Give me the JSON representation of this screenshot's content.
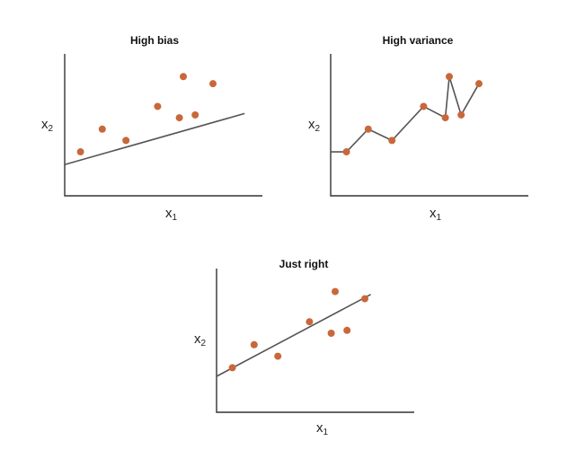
{
  "point_color": "#c8683a",
  "line_color": "#555555",
  "chart_data": [
    {
      "type": "scatter",
      "title": "High bias",
      "xlabel": "x",
      "xlabel_sub": "1",
      "ylabel": "x",
      "ylabel_sub": "2",
      "xlim": [
        0,
        10
      ],
      "ylim": [
        0,
        10
      ],
      "points": [
        {
          "x": 0.8,
          "y": 3.1
        },
        {
          "x": 1.9,
          "y": 4.7
        },
        {
          "x": 3.1,
          "y": 3.9
        },
        {
          "x": 4.7,
          "y": 6.3
        },
        {
          "x": 5.8,
          "y": 5.5
        },
        {
          "x": 6.0,
          "y": 8.4
        },
        {
          "x": 6.6,
          "y": 5.7
        },
        {
          "x": 7.5,
          "y": 7.9
        }
      ],
      "fit": {
        "kind": "linear",
        "x": [
          0,
          9.1
        ],
        "y": [
          2.2,
          5.8
        ]
      }
    },
    {
      "type": "line",
      "title": "High variance",
      "xlabel": "x",
      "xlabel_sub": "1",
      "ylabel": "x",
      "ylabel_sub": "2",
      "xlim": [
        0,
        10
      ],
      "ylim": [
        0,
        10
      ],
      "points": [
        {
          "x": 0.8,
          "y": 3.1
        },
        {
          "x": 1.9,
          "y": 4.7
        },
        {
          "x": 3.1,
          "y": 3.9
        },
        {
          "x": 4.7,
          "y": 6.3
        },
        {
          "x": 5.8,
          "y": 5.5
        },
        {
          "x": 6.0,
          "y": 8.4
        },
        {
          "x": 6.6,
          "y": 5.7
        },
        {
          "x": 7.5,
          "y": 7.9
        }
      ],
      "fit": {
        "kind": "interpolate",
        "start": {
          "x": 0,
          "y": 3.1
        }
      }
    },
    {
      "type": "scatter",
      "title": "Just right",
      "xlabel": "x",
      "xlabel_sub": "1",
      "ylabel": "x",
      "ylabel_sub": "2",
      "xlim": [
        0,
        10
      ],
      "ylim": [
        0,
        10
      ],
      "points": [
        {
          "x": 0.8,
          "y": 3.1
        },
        {
          "x": 1.9,
          "y": 4.7
        },
        {
          "x": 3.1,
          "y": 3.9
        },
        {
          "x": 4.7,
          "y": 6.3
        },
        {
          "x": 5.8,
          "y": 5.5
        },
        {
          "x": 6.0,
          "y": 8.4
        },
        {
          "x": 6.6,
          "y": 5.7
        },
        {
          "x": 7.5,
          "y": 7.9
        }
      ],
      "fit": {
        "kind": "linear",
        "x": [
          0,
          7.8
        ],
        "y": [
          2.5,
          8.2
        ]
      }
    }
  ]
}
